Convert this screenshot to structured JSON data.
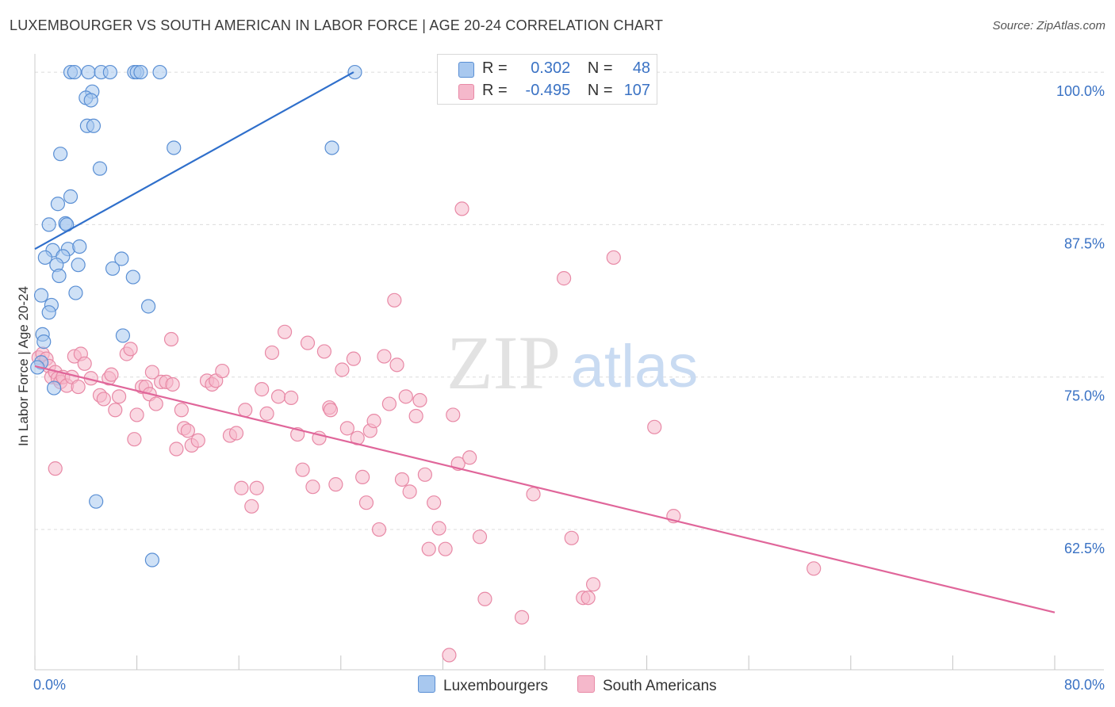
{
  "header": {
    "title": "LUXEMBOURGER VS SOUTH AMERICAN IN LABOR FORCE | AGE 20-24 CORRELATION CHART",
    "source": "Source: ZipAtlas.com"
  },
  "watermark": {
    "zip": "ZIP",
    "atlas": "atlas"
  },
  "colors": {
    "blue_fill": "#a8c8ef",
    "blue_stroke": "#5a8fd4",
    "blue_line": "#2f6fcb",
    "pink_fill": "#f5b8cb",
    "pink_stroke": "#e889a6",
    "pink_line": "#e0669a",
    "axis_label": "#3a72c4",
    "grid": "#dcdcdc"
  },
  "legend_top": [
    {
      "r_label": "R =",
      "r_value": "0.302",
      "n_label": "N =",
      "n_value": "48"
    },
    {
      "r_label": "R =",
      "r_value": "-0.495",
      "n_label": "N =",
      "n_value": "107"
    }
  ],
  "legend_bottom": [
    "Luxembourgers",
    "South Americans"
  ],
  "chart_data": {
    "type": "scatter",
    "title": "LUXEMBOURGER VS SOUTH AMERICAN IN LABOR FORCE | AGE 20-24 CORRELATION CHART",
    "xlabel": "",
    "ylabel": "In Labor Force | Age 20-24",
    "xlim": [
      0,
      80
    ],
    "ylim": [
      51,
      101.5
    ],
    "x_tick_labels": [
      "0.0%",
      "80.0%"
    ],
    "y_ticks": [
      62.5,
      75.0,
      87.5,
      100.0
    ],
    "y_tick_labels": [
      "62.5%",
      "75.0%",
      "87.5%",
      "100.0%"
    ],
    "grid": true,
    "legend": "top-center",
    "series": [
      {
        "name": "Luxembourgers",
        "r": 0.302,
        "n": 48,
        "trend": [
          [
            0,
            85.5
          ],
          [
            25,
            100.0
          ]
        ],
        "points": [
          [
            2.8,
            100
          ],
          [
            3.1,
            100
          ],
          [
            4.2,
            100
          ],
          [
            5.2,
            100
          ],
          [
            5.9,
            100
          ],
          [
            7.8,
            100
          ],
          [
            8.0,
            100
          ],
          [
            8.3,
            100
          ],
          [
            9.8,
            100
          ],
          [
            25.1,
            100
          ],
          [
            4.5,
            98.4
          ],
          [
            4.0,
            97.9
          ],
          [
            4.4,
            97.7
          ],
          [
            4.1,
            95.6
          ],
          [
            4.6,
            95.6
          ],
          [
            2.0,
            93.3
          ],
          [
            5.1,
            92.1
          ],
          [
            10.9,
            93.8
          ],
          [
            23.3,
            93.8
          ],
          [
            2.8,
            89.8
          ],
          [
            1.8,
            89.2
          ],
          [
            1.1,
            87.5
          ],
          [
            2.4,
            87.6
          ],
          [
            2.5,
            87.5
          ],
          [
            1.4,
            85.4
          ],
          [
            2.6,
            85.5
          ],
          [
            3.5,
            85.7
          ],
          [
            0.8,
            84.8
          ],
          [
            2.2,
            84.9
          ],
          [
            1.7,
            84.2
          ],
          [
            3.4,
            84.2
          ],
          [
            6.1,
            83.9
          ],
          [
            6.8,
            84.7
          ],
          [
            1.9,
            83.3
          ],
          [
            7.7,
            83.2
          ],
          [
            3.2,
            81.9
          ],
          [
            0.5,
            81.7
          ],
          [
            1.3,
            80.9
          ],
          [
            1.1,
            80.3
          ],
          [
            8.9,
            80.8
          ],
          [
            0.6,
            78.5
          ],
          [
            6.9,
            78.4
          ],
          [
            0.7,
            77.9
          ],
          [
            0.5,
            76.2
          ],
          [
            1.5,
            74.1
          ],
          [
            0.2,
            75.8
          ],
          [
            4.8,
            64.8
          ],
          [
            9.2,
            60.0
          ]
        ]
      },
      {
        "name": "South Americans",
        "r": -0.495,
        "n": 107,
        "trend": [
          [
            0,
            75.9
          ],
          [
            80,
            55.7
          ]
        ],
        "points": [
          [
            0.3,
            76.6
          ],
          [
            0.6,
            76.9
          ],
          [
            0.9,
            76.5
          ],
          [
            1.1,
            75.9
          ],
          [
            1.3,
            75.0
          ],
          [
            1.6,
            75.4
          ],
          [
            1.8,
            74.9
          ],
          [
            2.0,
            74.6
          ],
          [
            2.2,
            75.0
          ],
          [
            2.5,
            74.3
          ],
          [
            2.9,
            75.0
          ],
          [
            3.1,
            76.7
          ],
          [
            3.4,
            74.2
          ],
          [
            3.6,
            76.9
          ],
          [
            3.9,
            76.1
          ],
          [
            4.4,
            74.9
          ],
          [
            5.1,
            73.5
          ],
          [
            5.4,
            73.2
          ],
          [
            5.8,
            74.9
          ],
          [
            6.0,
            75.2
          ],
          [
            6.3,
            72.3
          ],
          [
            6.6,
            73.4
          ],
          [
            7.2,
            76.9
          ],
          [
            7.5,
            77.3
          ],
          [
            7.8,
            69.9
          ],
          [
            8.0,
            71.9
          ],
          [
            8.4,
            74.2
          ],
          [
            8.7,
            74.2
          ],
          [
            9.0,
            73.6
          ],
          [
            9.2,
            75.4
          ],
          [
            9.5,
            72.8
          ],
          [
            9.9,
            74.6
          ],
          [
            10.3,
            74.6
          ],
          [
            10.8,
            74.4
          ],
          [
            10.7,
            78.1
          ],
          [
            11.1,
            69.1
          ],
          [
            11.5,
            72.3
          ],
          [
            11.7,
            70.8
          ],
          [
            12.0,
            70.6
          ],
          [
            12.3,
            69.4
          ],
          [
            12.8,
            69.8
          ],
          [
            13.5,
            74.7
          ],
          [
            13.9,
            74.4
          ],
          [
            14.2,
            74.7
          ],
          [
            14.7,
            75.5
          ],
          [
            15.3,
            70.2
          ],
          [
            15.8,
            70.4
          ],
          [
            16.2,
            65.9
          ],
          [
            16.5,
            72.3
          ],
          [
            17.0,
            64.4
          ],
          [
            17.4,
            65.9
          ],
          [
            17.8,
            74.0
          ],
          [
            18.2,
            72.0
          ],
          [
            18.6,
            77.0
          ],
          [
            19.1,
            73.4
          ],
          [
            19.6,
            78.7
          ],
          [
            20.1,
            73.3
          ],
          [
            20.6,
            70.3
          ],
          [
            21.0,
            67.4
          ],
          [
            21.4,
            77.8
          ],
          [
            21.8,
            66.0
          ],
          [
            22.3,
            70.0
          ],
          [
            22.7,
            77.1
          ],
          [
            23.1,
            72.5
          ],
          [
            23.2,
            72.3
          ],
          [
            23.6,
            66.2
          ],
          [
            24.1,
            75.6
          ],
          [
            24.5,
            70.8
          ],
          [
            25.0,
            76.5
          ],
          [
            25.3,
            70.0
          ],
          [
            25.7,
            66.8
          ],
          [
            26.0,
            64.7
          ],
          [
            26.3,
            70.6
          ],
          [
            26.6,
            71.4
          ],
          [
            27.0,
            62.5
          ],
          [
            27.4,
            76.7
          ],
          [
            27.8,
            72.8
          ],
          [
            28.2,
            81.3
          ],
          [
            28.4,
            76.0
          ],
          [
            28.8,
            66.6
          ],
          [
            29.1,
            73.4
          ],
          [
            29.4,
            65.6
          ],
          [
            29.9,
            71.8
          ],
          [
            30.2,
            73.1
          ],
          [
            30.6,
            67.0
          ],
          [
            30.9,
            60.9
          ],
          [
            31.3,
            64.7
          ],
          [
            31.7,
            62.6
          ],
          [
            32.2,
            60.9
          ],
          [
            32.8,
            71.9
          ],
          [
            33.2,
            67.9
          ],
          [
            33.5,
            88.8
          ],
          [
            34.1,
            68.4
          ],
          [
            34.9,
            61.9
          ],
          [
            35.3,
            56.8
          ],
          [
            38.2,
            55.3
          ],
          [
            39.1,
            65.4
          ],
          [
            41.5,
            83.1
          ],
          [
            42.1,
            61.8
          ],
          [
            43.0,
            56.9
          ],
          [
            43.4,
            56.9
          ],
          [
            43.8,
            58.0
          ],
          [
            45.4,
            84.8
          ],
          [
            48.6,
            70.9
          ],
          [
            50.1,
            63.6
          ],
          [
            61.1,
            59.3
          ],
          [
            32.5,
            52.2
          ],
          [
            1.6,
            67.5
          ]
        ]
      }
    ]
  }
}
